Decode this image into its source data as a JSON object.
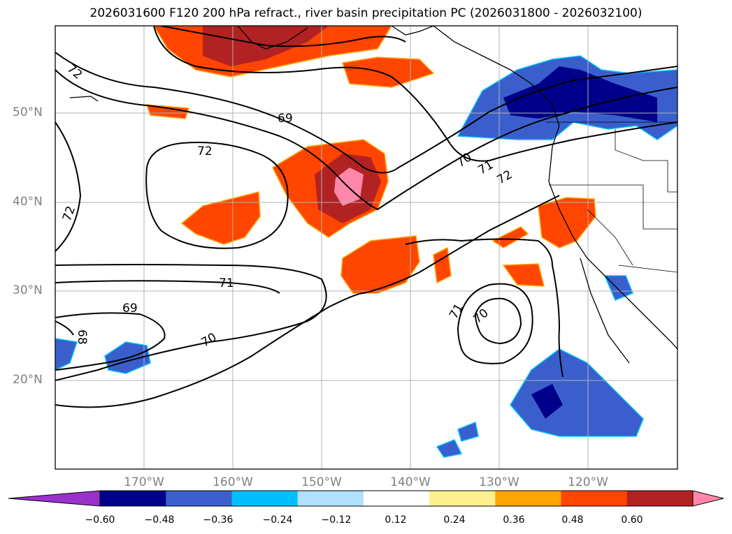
{
  "title": "2026031600 F120 200 hPa refract., river basin precipitation PC (2026031800 - 2026032100)",
  "map": {
    "lat_labels": [
      "50°N",
      "40°N",
      "30°N",
      "20°N"
    ],
    "lon_labels": [
      "170°W",
      "160°W",
      "150°W",
      "140°W",
      "130°W",
      "120°W"
    ],
    "contour_labels": [
      "72",
      "69",
      "72",
      "72",
      "70",
      "71",
      "72",
      "71",
      "69",
      "68",
      "70",
      "71",
      "70"
    ]
  },
  "colorbar": {
    "ticks": [
      "−0.60",
      "−0.48",
      "−0.36",
      "−0.24",
      "−0.12",
      "0.12",
      "0.24",
      "0.36",
      "0.48",
      "0.60"
    ],
    "colors": [
      "#9932cc",
      "#00008b",
      "#3a5fcd",
      "#00bfff",
      "#b0e2ff",
      "#ffffff",
      "#fff08f",
      "#ffa500",
      "#ff4500",
      "#b22222",
      "#ff88aa"
    ]
  }
}
